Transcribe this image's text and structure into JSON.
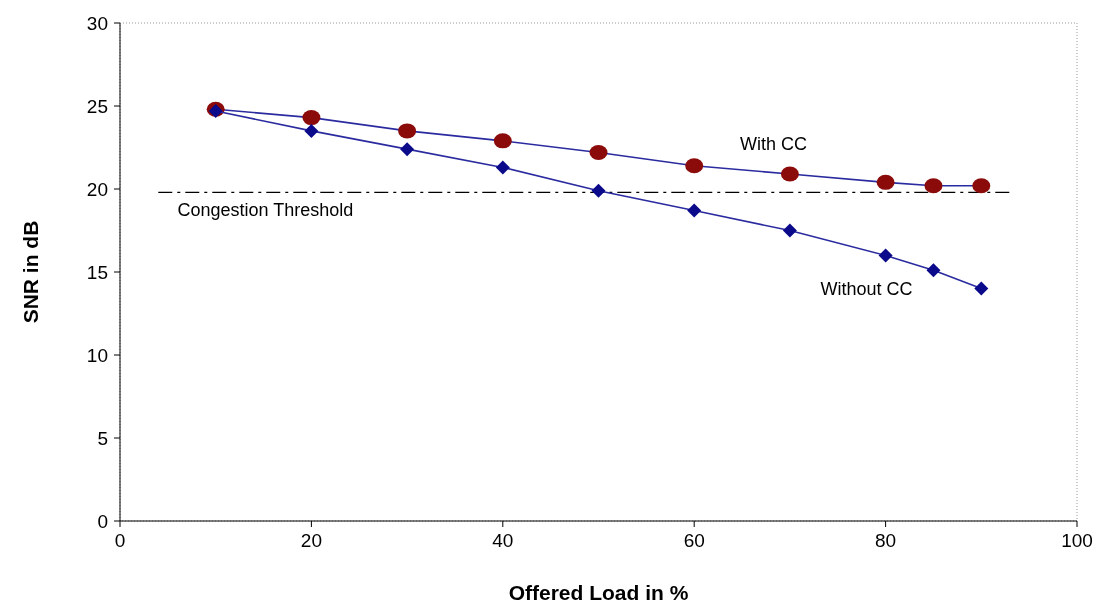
{
  "chart_data": {
    "type": "line",
    "xlabel": "Offered Load in %",
    "ylabel": "SNR in dB",
    "x": [
      10,
      20,
      30,
      40,
      50,
      60,
      70,
      80,
      85,
      90
    ],
    "series": [
      {
        "name": "With CC",
        "color": "#8b0a0a",
        "marker": "circle",
        "values": [
          24.8,
          24.3,
          23.5,
          22.9,
          22.2,
          21.4,
          20.9,
          20.4,
          20.2,
          20.2
        ]
      },
      {
        "name": "Without CC",
        "color": "#0a0a8b",
        "marker": "diamond",
        "values": [
          24.7,
          23.5,
          22.4,
          21.3,
          19.9,
          18.7,
          17.5,
          16.0,
          15.1,
          14.0
        ]
      }
    ],
    "xlim": [
      0,
      100
    ],
    "xticks": [
      0,
      20,
      40,
      60,
      80,
      100
    ],
    "ylim": [
      0,
      30
    ],
    "yticks": [
      0,
      5,
      10,
      15,
      20,
      25,
      30
    ],
    "ref_lines": [
      {
        "axis": "y",
        "value": 19.8,
        "label": "Congestion Threshold",
        "color": "#000000",
        "line_style": "dashed"
      }
    ],
    "grid": false,
    "line_style": "solid"
  }
}
